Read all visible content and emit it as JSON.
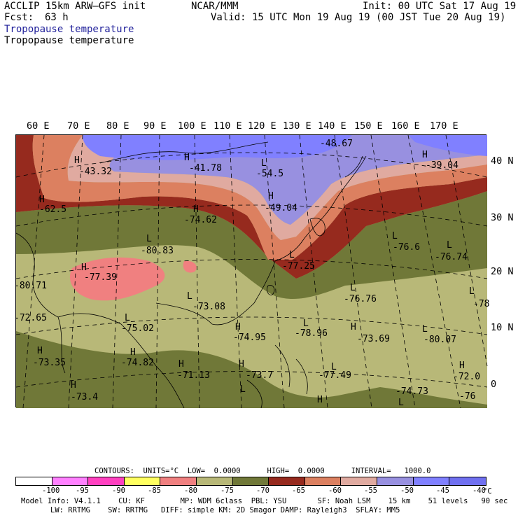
{
  "header": {
    "model": "ACCLIP 15km ARW–GFS init",
    "org": "NCAR/MMM",
    "init": "Init: 00 UTC Sat 17 Aug 19",
    "fcst_label": "Fcst:",
    "fcst_value": "63 h",
    "valid": "Valid: 15 UTC Mon 19 Aug 19 (00 JST Tue 20 Aug 19)",
    "field_title_blue": "Tropopause temperature",
    "field_title": "Tropopause temperature"
  },
  "axes": {
    "lon_labels": [
      "60 E",
      "70 E",
      "80 E",
      "90 E",
      "100 E",
      "110 E",
      "120 E",
      "130 E",
      "140 E",
      "150 E",
      "160 E",
      "170 E"
    ],
    "lat_labels": [
      "40 N",
      "30 N",
      "20 N",
      "10 N",
      "0"
    ]
  },
  "map_labels": [
    {
      "t": "H"
    },
    {
      "t": "-43.32"
    },
    {
      "t": "H"
    },
    {
      "t": "-41.78"
    },
    {
      "t": "-48.67"
    },
    {
      "t": "H"
    },
    {
      "t": "-39.04"
    },
    {
      "t": "L"
    },
    {
      "t": "-54.5"
    },
    {
      "t": "H"
    },
    {
      "t": "-62.5"
    },
    {
      "t": "H"
    },
    {
      "t": "-74.62"
    },
    {
      "t": "H"
    },
    {
      "t": "-49.04"
    },
    {
      "t": "L"
    },
    {
      "t": "-80.83"
    },
    {
      "t": "H"
    },
    {
      "t": "-77.39"
    },
    {
      "t": "L"
    },
    {
      "t": "-77.25"
    },
    {
      "t": "L"
    },
    {
      "t": "-76.6"
    },
    {
      "t": "L"
    },
    {
      "t": "-76.74"
    },
    {
      "t": "-80.71"
    },
    {
      "t": "L"
    },
    {
      "t": "-73.08"
    },
    {
      "t": "L"
    },
    {
      "t": "-76.76"
    },
    {
      "t": "L"
    },
    {
      "t": "-78"
    },
    {
      "t": "-72.65"
    },
    {
      "t": "L"
    },
    {
      "t": "-75.02"
    },
    {
      "t": "H"
    },
    {
      "t": "-74.95"
    },
    {
      "t": "L"
    },
    {
      "t": "-78.96"
    },
    {
      "t": "H"
    },
    {
      "t": "-73.69"
    },
    {
      "t": "L"
    },
    {
      "t": "-80.07"
    },
    {
      "t": "H"
    },
    {
      "t": "-73.35"
    },
    {
      "t": "H"
    },
    {
      "t": "-74.82"
    },
    {
      "t": "H"
    },
    {
      "t": "-71.13"
    },
    {
      "t": "H"
    },
    {
      "t": "-73.7"
    },
    {
      "t": "L"
    },
    {
      "t": "-77.49"
    },
    {
      "t": "H"
    },
    {
      "t": "-72.0"
    },
    {
      "t": "H"
    },
    {
      "t": "-73.4"
    },
    {
      "t": "L"
    },
    {
      "t": "H"
    },
    {
      "t": "-74.73"
    },
    {
      "t": "L"
    },
    {
      "t": "-76"
    }
  ],
  "contours": {
    "line": "CONTOURS:  UNITS=°C  LOW=  0.0000      HIGH=  0.0000      INTERVAL=   1000.0"
  },
  "colorbar": {
    "colors": [
      "#ffffff",
      "#ff80ff",
      "#ff40c0",
      "#ffff60",
      "#f08080",
      "#b8b878",
      "#707838",
      "#962a1e",
      "#dc8060",
      "#e0aaa0",
      "#9890e0",
      "#8080ff",
      "#7070f0"
    ],
    "labels": [
      "-100",
      "-95",
      "-90",
      "-85",
      "-80",
      "-75",
      "-70",
      "-65",
      "-60",
      "-55",
      "-50",
      "-45",
      "-40",
      "°C"
    ]
  },
  "footer": {
    "line1": "Model Info: V4.1.1    CU: KF        MP: WDM 6class  PBL: YSU       SF: Noah LSM    15 km    51 levels   90 sec",
    "line2": "LW: RRTMG    SW: RRTMG   DIFF: simple KM: 2D Smagor DAMP: Rayleigh3  SFLAY: MM5"
  }
}
